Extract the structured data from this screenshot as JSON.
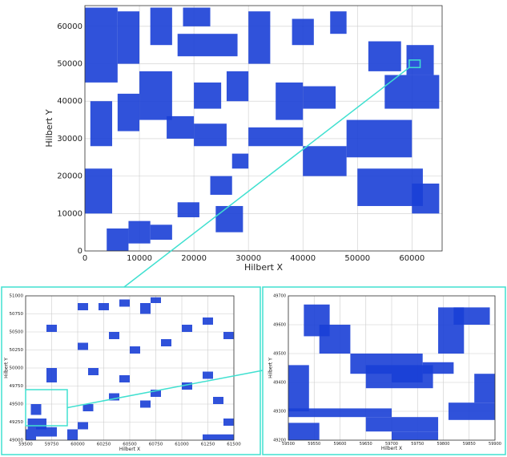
{
  "chart_data": [
    {
      "type": "density",
      "color": "#1a3fd6",
      "grid": true,
      "x_label": "Hilbert X",
      "y_label": "Hilbert Y",
      "xlim": [
        0,
        65536
      ],
      "ylim": [
        0,
        65536
      ],
      "xticks": [
        0,
        10000,
        20000,
        30000,
        40000,
        50000,
        60000
      ],
      "yticks": [
        0,
        10000,
        20000,
        30000,
        40000,
        50000,
        60000
      ],
      "blocks": [
        [
          0,
          6000,
          45000,
          65000
        ],
        [
          6000,
          10000,
          50000,
          64000
        ],
        [
          10000,
          16000,
          35000,
          48000
        ],
        [
          12000,
          16000,
          55000,
          65000
        ],
        [
          1000,
          5000,
          28000,
          40000
        ],
        [
          6000,
          10000,
          32000,
          42000
        ],
        [
          17000,
          28000,
          52000,
          58000
        ],
        [
          18000,
          23000,
          60000,
          65000
        ],
        [
          30000,
          34000,
          50000,
          64000
        ],
        [
          38000,
          42000,
          55000,
          62000
        ],
        [
          45000,
          48000,
          58000,
          64000
        ],
        [
          59000,
          64000,
          47000,
          55000
        ],
        [
          55000,
          65000,
          38000,
          47000
        ],
        [
          48000,
          60000,
          25000,
          35000
        ],
        [
          40000,
          48000,
          20000,
          28000
        ],
        [
          30000,
          40000,
          28000,
          33000
        ],
        [
          20000,
          26000,
          28000,
          34000
        ],
        [
          15000,
          20000,
          30000,
          36000
        ],
        [
          0,
          5000,
          10000,
          22000
        ],
        [
          4000,
          8000,
          0,
          6000
        ],
        [
          8000,
          12000,
          2000,
          8000
        ],
        [
          12000,
          16000,
          3000,
          7000
        ],
        [
          17000,
          21000,
          9000,
          13000
        ],
        [
          23000,
          27000,
          15000,
          20000
        ],
        [
          24000,
          29000,
          5000,
          12000
        ],
        [
          27000,
          30000,
          22000,
          26000
        ],
        [
          50000,
          62000,
          12000,
          22000
        ],
        [
          60000,
          65000,
          10000,
          18000
        ],
        [
          35000,
          40000,
          35000,
          45000
        ],
        [
          40000,
          46000,
          38000,
          44000
        ],
        [
          20000,
          25000,
          38000,
          45000
        ],
        [
          26000,
          30000,
          40000,
          48000
        ],
        [
          52000,
          58000,
          48000,
          56000
        ]
      ]
    },
    {
      "type": "density",
      "color": "#1a3fd6",
      "grid": true,
      "x_label": "Hilbert X",
      "y_label": "Hilbert Y",
      "xlim": [
        59500,
        61500
      ],
      "ylim": [
        49000,
        51000
      ],
      "xticks": [
        59500,
        59750,
        60000,
        60250,
        60500,
        60750,
        61000,
        61250,
        61500
      ],
      "yticks": [
        49000,
        49250,
        49500,
        49750,
        50000,
        50250,
        50500,
        50750,
        51000
      ],
      "blocks": [
        [
          59500,
          59600,
          49000,
          49150
        ],
        [
          59520,
          59700,
          49150,
          49300
        ],
        [
          59600,
          59800,
          49050,
          49180
        ],
        [
          59550,
          59650,
          49350,
          49500
        ],
        [
          59700,
          59800,
          49800,
          50000
        ],
        [
          60000,
          60100,
          50800,
          50900
        ],
        [
          60200,
          60300,
          50800,
          50900
        ],
        [
          60400,
          60500,
          50850,
          50950
        ],
        [
          60600,
          60700,
          50750,
          50900
        ],
        [
          60700,
          60800,
          50900,
          50980
        ],
        [
          59700,
          59800,
          50500,
          50600
        ],
        [
          60000,
          60100,
          50250,
          50350
        ],
        [
          60300,
          60400,
          50400,
          50500
        ],
        [
          60500,
          60600,
          50200,
          50300
        ],
        [
          60800,
          60900,
          50300,
          50400
        ],
        [
          61000,
          61100,
          50500,
          50600
        ],
        [
          61200,
          61300,
          50600,
          50700
        ],
        [
          61400,
          61500,
          50400,
          50500
        ],
        [
          60100,
          60200,
          49900,
          50000
        ],
        [
          60400,
          60500,
          49800,
          49900
        ],
        [
          60700,
          60800,
          49600,
          49700
        ],
        [
          61000,
          61100,
          49700,
          49800
        ],
        [
          61300,
          61400,
          49500,
          49600
        ],
        [
          60050,
          60150,
          49400,
          49500
        ],
        [
          60300,
          60400,
          49550,
          49650
        ],
        [
          60600,
          60700,
          49450,
          49550
        ],
        [
          61200,
          61300,
          49850,
          49950
        ],
        [
          61400,
          61500,
          49200,
          49300
        ],
        [
          60000,
          60100,
          49150,
          49250
        ],
        [
          59900,
          60000,
          49000,
          49150
        ],
        [
          61200,
          61500,
          49000,
          49080
        ]
      ]
    },
    {
      "type": "density",
      "color": "#1a3fd6",
      "grid": true,
      "x_label": "Hilbert X",
      "y_label": "Hilbert Y",
      "xlim": [
        59500,
        59900
      ],
      "ylim": [
        49200,
        49700
      ],
      "xticks": [
        59500,
        59550,
        59600,
        59650,
        59700,
        59750,
        59800,
        59850,
        59900
      ],
      "yticks": [
        49200,
        49300,
        49400,
        49500,
        49600,
        49700
      ],
      "blocks": [
        [
          59530,
          59580,
          49560,
          49670
        ],
        [
          59560,
          59620,
          49500,
          49600
        ],
        [
          59500,
          59540,
          49300,
          49460
        ],
        [
          59500,
          59700,
          49280,
          49310
        ],
        [
          59620,
          59700,
          49430,
          49500
        ],
        [
          59700,
          59760,
          49400,
          49500
        ],
        [
          59650,
          59780,
          49380,
          49460
        ],
        [
          59760,
          59820,
          49430,
          49470
        ],
        [
          59790,
          59840,
          49500,
          49660
        ],
        [
          59820,
          59890,
          49600,
          49660
        ],
        [
          59860,
          59900,
          49330,
          49430
        ],
        [
          59810,
          59900,
          49270,
          49330
        ],
        [
          59650,
          59790,
          49230,
          49280
        ],
        [
          59700,
          59790,
          49200,
          49230
        ],
        [
          59500,
          59560,
          49200,
          49260
        ]
      ]
    }
  ]
}
